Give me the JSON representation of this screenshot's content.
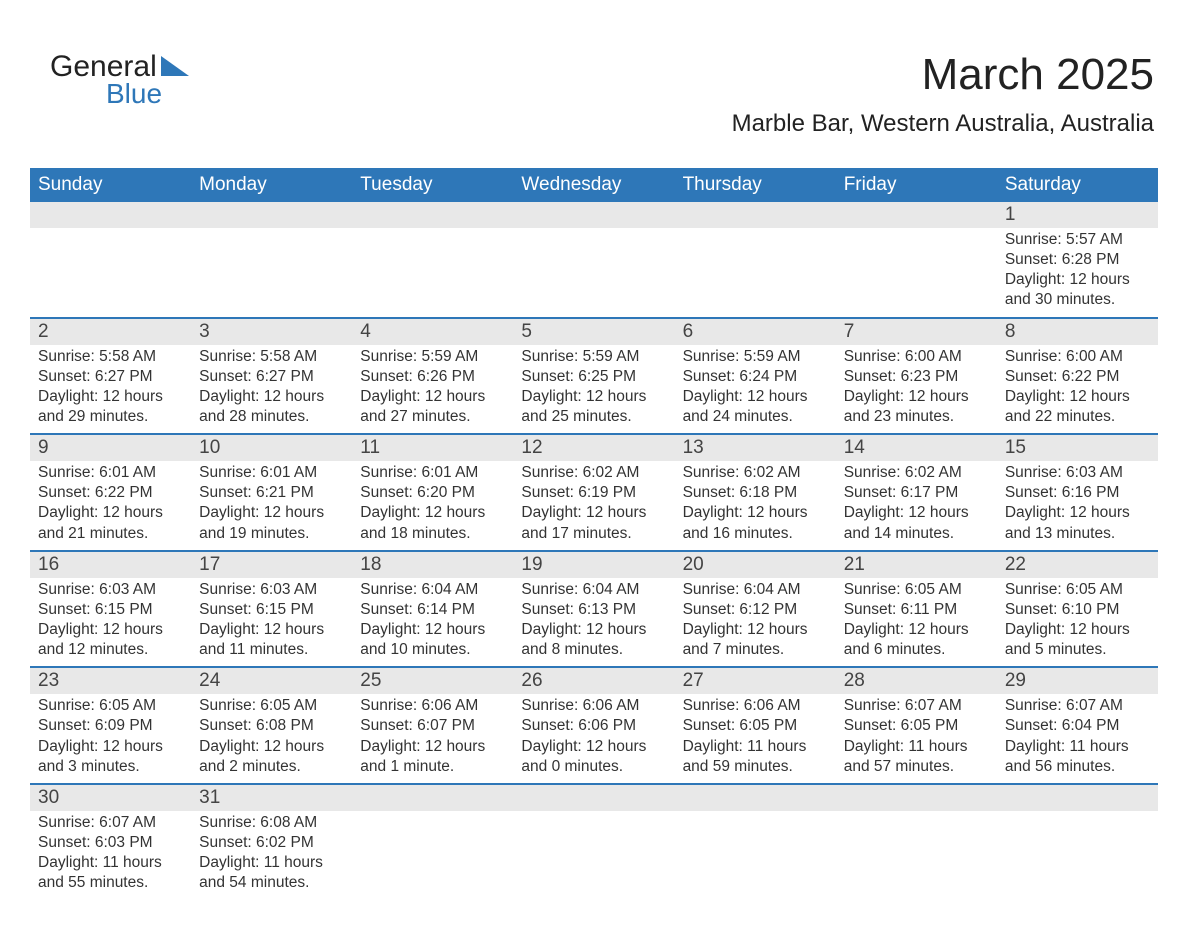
{
  "logo": {
    "word1": "General",
    "word2": "Blue",
    "brand_color": "#2e77b8"
  },
  "title": "March 2025",
  "location": "Marble Bar, Western Australia, Australia",
  "colors": {
    "header_bg": "#2e77b8",
    "header_fg": "#ffffff",
    "daynum_bg": "#e8e8e8",
    "row_divider": "#2e77b8",
    "text": "#333333",
    "page_bg": "#ffffff"
  },
  "day_headers": [
    "Sunday",
    "Monday",
    "Tuesday",
    "Wednesday",
    "Thursday",
    "Friday",
    "Saturday"
  ],
  "weeks": [
    [
      null,
      null,
      null,
      null,
      null,
      null,
      {
        "n": "1",
        "sunrise": "Sunrise: 5:57 AM",
        "sunset": "Sunset: 6:28 PM",
        "d1": "Daylight: 12 hours",
        "d2": "and 30 minutes."
      }
    ],
    [
      {
        "n": "2",
        "sunrise": "Sunrise: 5:58 AM",
        "sunset": "Sunset: 6:27 PM",
        "d1": "Daylight: 12 hours",
        "d2": "and 29 minutes."
      },
      {
        "n": "3",
        "sunrise": "Sunrise: 5:58 AM",
        "sunset": "Sunset: 6:27 PM",
        "d1": "Daylight: 12 hours",
        "d2": "and 28 minutes."
      },
      {
        "n": "4",
        "sunrise": "Sunrise: 5:59 AM",
        "sunset": "Sunset: 6:26 PM",
        "d1": "Daylight: 12 hours",
        "d2": "and 27 minutes."
      },
      {
        "n": "5",
        "sunrise": "Sunrise: 5:59 AM",
        "sunset": "Sunset: 6:25 PM",
        "d1": "Daylight: 12 hours",
        "d2": "and 25 minutes."
      },
      {
        "n": "6",
        "sunrise": "Sunrise: 5:59 AM",
        "sunset": "Sunset: 6:24 PM",
        "d1": "Daylight: 12 hours",
        "d2": "and 24 minutes."
      },
      {
        "n": "7",
        "sunrise": "Sunrise: 6:00 AM",
        "sunset": "Sunset: 6:23 PM",
        "d1": "Daylight: 12 hours",
        "d2": "and 23 minutes."
      },
      {
        "n": "8",
        "sunrise": "Sunrise: 6:00 AM",
        "sunset": "Sunset: 6:22 PM",
        "d1": "Daylight: 12 hours",
        "d2": "and 22 minutes."
      }
    ],
    [
      {
        "n": "9",
        "sunrise": "Sunrise: 6:01 AM",
        "sunset": "Sunset: 6:22 PM",
        "d1": "Daylight: 12 hours",
        "d2": "and 21 minutes."
      },
      {
        "n": "10",
        "sunrise": "Sunrise: 6:01 AM",
        "sunset": "Sunset: 6:21 PM",
        "d1": "Daylight: 12 hours",
        "d2": "and 19 minutes."
      },
      {
        "n": "11",
        "sunrise": "Sunrise: 6:01 AM",
        "sunset": "Sunset: 6:20 PM",
        "d1": "Daylight: 12 hours",
        "d2": "and 18 minutes."
      },
      {
        "n": "12",
        "sunrise": "Sunrise: 6:02 AM",
        "sunset": "Sunset: 6:19 PM",
        "d1": "Daylight: 12 hours",
        "d2": "and 17 minutes."
      },
      {
        "n": "13",
        "sunrise": "Sunrise: 6:02 AM",
        "sunset": "Sunset: 6:18 PM",
        "d1": "Daylight: 12 hours",
        "d2": "and 16 minutes."
      },
      {
        "n": "14",
        "sunrise": "Sunrise: 6:02 AM",
        "sunset": "Sunset: 6:17 PM",
        "d1": "Daylight: 12 hours",
        "d2": "and 14 minutes."
      },
      {
        "n": "15",
        "sunrise": "Sunrise: 6:03 AM",
        "sunset": "Sunset: 6:16 PM",
        "d1": "Daylight: 12 hours",
        "d2": "and 13 minutes."
      }
    ],
    [
      {
        "n": "16",
        "sunrise": "Sunrise: 6:03 AM",
        "sunset": "Sunset: 6:15 PM",
        "d1": "Daylight: 12 hours",
        "d2": "and 12 minutes."
      },
      {
        "n": "17",
        "sunrise": "Sunrise: 6:03 AM",
        "sunset": "Sunset: 6:15 PM",
        "d1": "Daylight: 12 hours",
        "d2": "and 11 minutes."
      },
      {
        "n": "18",
        "sunrise": "Sunrise: 6:04 AM",
        "sunset": "Sunset: 6:14 PM",
        "d1": "Daylight: 12 hours",
        "d2": "and 10 minutes."
      },
      {
        "n": "19",
        "sunrise": "Sunrise: 6:04 AM",
        "sunset": "Sunset: 6:13 PM",
        "d1": "Daylight: 12 hours",
        "d2": "and 8 minutes."
      },
      {
        "n": "20",
        "sunrise": "Sunrise: 6:04 AM",
        "sunset": "Sunset: 6:12 PM",
        "d1": "Daylight: 12 hours",
        "d2": "and 7 minutes."
      },
      {
        "n": "21",
        "sunrise": "Sunrise: 6:05 AM",
        "sunset": "Sunset: 6:11 PM",
        "d1": "Daylight: 12 hours",
        "d2": "and 6 minutes."
      },
      {
        "n": "22",
        "sunrise": "Sunrise: 6:05 AM",
        "sunset": "Sunset: 6:10 PM",
        "d1": "Daylight: 12 hours",
        "d2": "and 5 minutes."
      }
    ],
    [
      {
        "n": "23",
        "sunrise": "Sunrise: 6:05 AM",
        "sunset": "Sunset: 6:09 PM",
        "d1": "Daylight: 12 hours",
        "d2": "and 3 minutes."
      },
      {
        "n": "24",
        "sunrise": "Sunrise: 6:05 AM",
        "sunset": "Sunset: 6:08 PM",
        "d1": "Daylight: 12 hours",
        "d2": "and 2 minutes."
      },
      {
        "n": "25",
        "sunrise": "Sunrise: 6:06 AM",
        "sunset": "Sunset: 6:07 PM",
        "d1": "Daylight: 12 hours",
        "d2": "and 1 minute."
      },
      {
        "n": "26",
        "sunrise": "Sunrise: 6:06 AM",
        "sunset": "Sunset: 6:06 PM",
        "d1": "Daylight: 12 hours",
        "d2": "and 0 minutes."
      },
      {
        "n": "27",
        "sunrise": "Sunrise: 6:06 AM",
        "sunset": "Sunset: 6:05 PM",
        "d1": "Daylight: 11 hours",
        "d2": "and 59 minutes."
      },
      {
        "n": "28",
        "sunrise": "Sunrise: 6:07 AM",
        "sunset": "Sunset: 6:05 PM",
        "d1": "Daylight: 11 hours",
        "d2": "and 57 minutes."
      },
      {
        "n": "29",
        "sunrise": "Sunrise: 6:07 AM",
        "sunset": "Sunset: 6:04 PM",
        "d1": "Daylight: 11 hours",
        "d2": "and 56 minutes."
      }
    ],
    [
      {
        "n": "30",
        "sunrise": "Sunrise: 6:07 AM",
        "sunset": "Sunset: 6:03 PM",
        "d1": "Daylight: 11 hours",
        "d2": "and 55 minutes."
      },
      {
        "n": "31",
        "sunrise": "Sunrise: 6:08 AM",
        "sunset": "Sunset: 6:02 PM",
        "d1": "Daylight: 11 hours",
        "d2": "and 54 minutes."
      },
      null,
      null,
      null,
      null,
      null
    ]
  ]
}
